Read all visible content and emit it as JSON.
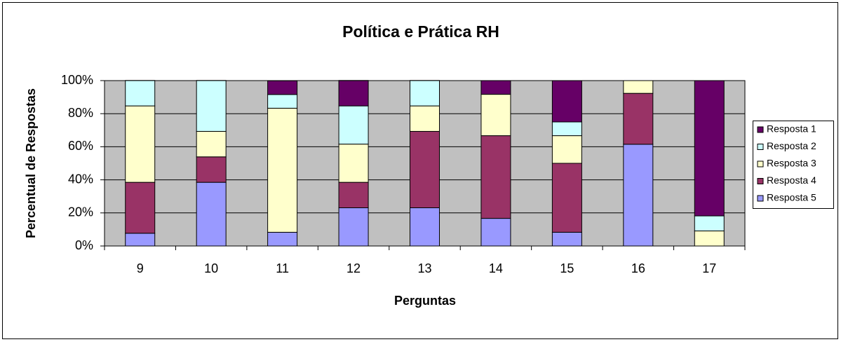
{
  "chart_data": {
    "type": "stacked_bar",
    "title": "Política e Prática RH",
    "x_label": "Perguntas",
    "y_label": "Percentual de Respostas",
    "categories": [
      "9",
      "10",
      "11",
      "12",
      "13",
      "14",
      "15",
      "16",
      "17"
    ],
    "series": [
      {
        "name": "Resposta 1",
        "color": "#660066",
        "values": [
          0,
          0,
          8.3,
          15.4,
          0,
          8.3,
          25,
          0,
          81.8
        ]
      },
      {
        "name": "Resposta 2",
        "color": "#ccffff",
        "values": [
          15.4,
          30.8,
          8.3,
          23.1,
          15.4,
          0,
          8.3,
          0,
          9.1
        ]
      },
      {
        "name": "Resposta 3",
        "color": "#ffffcc",
        "values": [
          46.2,
          15.4,
          75,
          23.1,
          15.4,
          25,
          16.7,
          7.7,
          9.1
        ]
      },
      {
        "name": "Resposta 4",
        "color": "#993366",
        "values": [
          30.8,
          15.4,
          0,
          15.4,
          46.2,
          50,
          41.7,
          30.8,
          0
        ]
      },
      {
        "name": "Resposta 5",
        "color": "#9999ff",
        "values": [
          7.7,
          38.5,
          8.3,
          23.1,
          23.1,
          16.7,
          8.3,
          61.5,
          0
        ]
      }
    ],
    "ylim": [
      0,
      100
    ],
    "yticks": [
      {
        "value": 0,
        "label": "0%"
      },
      {
        "value": 20,
        "label": "20%"
      },
      {
        "value": 40,
        "label": "40%"
      },
      {
        "value": 60,
        "label": "60%"
      },
      {
        "value": 80,
        "label": "80%"
      },
      {
        "value": 100,
        "label": "100%"
      }
    ],
    "grid": true,
    "plot_background": "#c0c0c0",
    "legend": "right"
  }
}
